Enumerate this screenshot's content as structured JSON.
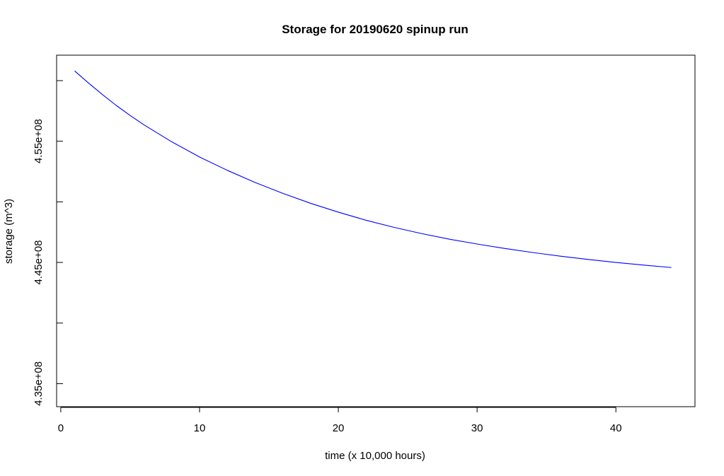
{
  "chart_data": {
    "type": "line",
    "title": "Storage for 20190620 spinup run",
    "xlabel": "time (x 10,000 hours)",
    "ylabel": "storage (m^3)",
    "xlim": [
      -0.3,
      45.7
    ],
    "ylim": [
      433100000,
      462100000
    ],
    "x_ticks": [
      0,
      10,
      20,
      30,
      40
    ],
    "x_tick_labels": [
      "0",
      "10",
      "20",
      "30",
      "40"
    ],
    "y_ticks": [
      435000000,
      440000000,
      445000000,
      450000000,
      455000000,
      460000000
    ],
    "y_tick_labels": [
      "4.35e+08",
      "",
      "4.45e+08",
      "",
      "4.55e+08",
      ""
    ],
    "grid": false,
    "series": [
      {
        "color": "#0000ff",
        "x": [
          1,
          2,
          3,
          4,
          5,
          6,
          8,
          10,
          12,
          14,
          16,
          18,
          20,
          22,
          24,
          26,
          28,
          30,
          32,
          34,
          36,
          38,
          40,
          42,
          44
        ],
        "y": [
          460800000,
          459800000,
          458850000,
          457950000,
          457120000,
          456350000,
          454950000,
          453700000,
          452600000,
          451600000,
          450700000,
          449880000,
          449150000,
          448480000,
          447900000,
          447380000,
          446920000,
          446520000,
          446150000,
          445820000,
          445520000,
          445250000,
          445000000,
          444780000,
          444580000
        ]
      }
    ]
  }
}
